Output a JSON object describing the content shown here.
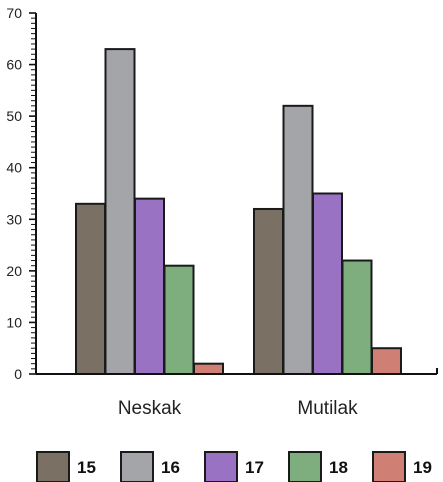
{
  "chart_data": {
    "type": "bar",
    "categories": [
      "Neskak",
      "Mutilak"
    ],
    "series": [
      {
        "name": "15",
        "values": [
          33,
          32
        ],
        "color": "#7b7064"
      },
      {
        "name": "16",
        "values": [
          63,
          52
        ],
        "color": "#a4a5a8"
      },
      {
        "name": "17",
        "values": [
          34,
          35
        ],
        "color": "#9a72c4"
      },
      {
        "name": "18",
        "values": [
          21,
          22
        ],
        "color": "#7fae7e"
      },
      {
        "name": "19",
        "values": [
          2,
          5
        ],
        "color": "#d07f74"
      }
    ],
    "yticks": [
      0,
      10,
      20,
      30,
      40,
      50,
      60,
      70
    ],
    "ylim": [
      0,
      70
    ],
    "grid": false,
    "legend_position": "bottom"
  }
}
